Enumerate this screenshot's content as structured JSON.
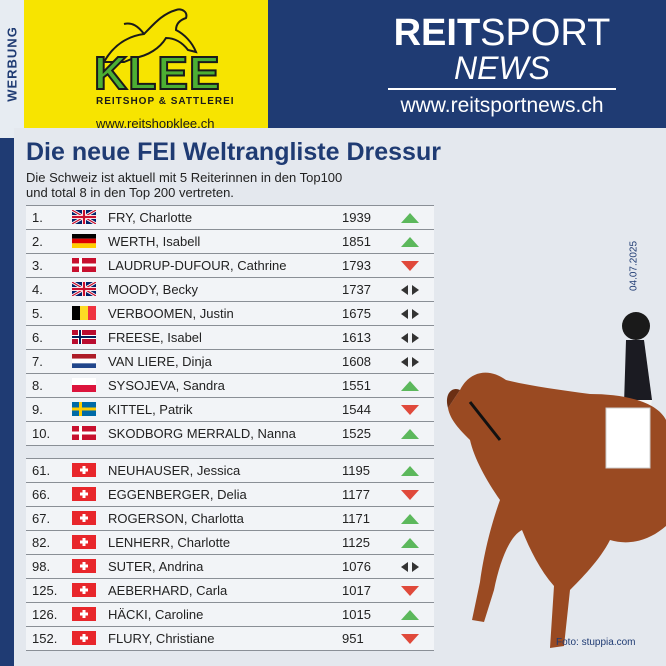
{
  "ad": {
    "side_label": "WERBUNG",
    "logo": "KLEE",
    "logo_sub": "REITSHOP & SATTLEREI",
    "url": "www.reitshopklee.ch"
  },
  "brand": {
    "title_bold": "REIT",
    "title_rest": "SPORT",
    "subtitle": "NEWS",
    "url": "www.reitsportnews.ch"
  },
  "heading": "Die neue FEI Weltrangliste Dressur",
  "subheading_line1": "Die Schweiz ist aktuell mit 5 Reiterinnen in den Top100",
  "subheading_line2": "und total 8 in den Top 200 vertreten.",
  "date": "04.07.2025",
  "photo_credit": "Foto: stuppia.com",
  "colors": {
    "navy": "#1f3b73",
    "up": "#5cb85c",
    "down": "#e0493b",
    "same": "#333333",
    "ad_yellow": "#f7e400"
  },
  "top10": [
    {
      "rank": "1.",
      "flag": "gb",
      "name": "FRY, Charlotte",
      "points": "1939",
      "trend": "up"
    },
    {
      "rank": "2.",
      "flag": "de",
      "name": "WERTH, Isabell",
      "points": "1851",
      "trend": "up"
    },
    {
      "rank": "3.",
      "flag": "dk",
      "name": "LAUDRUP-DUFOUR, Cathrine",
      "points": "1793",
      "trend": "down"
    },
    {
      "rank": "4.",
      "flag": "gb",
      "name": "MOODY, Becky",
      "points": "1737",
      "trend": "same"
    },
    {
      "rank": "5.",
      "flag": "be",
      "name": "VERBOOMEN, Justin",
      "points": "1675",
      "trend": "same"
    },
    {
      "rank": "6.",
      "flag": "no",
      "name": "FREESE, Isabel",
      "points": "1613",
      "trend": "same"
    },
    {
      "rank": "7.",
      "flag": "nl",
      "name": "VAN LIERE, Dinja",
      "points": "1608",
      "trend": "same"
    },
    {
      "rank": "8.",
      "flag": "pl",
      "name": "SYSOJEVA, Sandra",
      "points": "1551",
      "trend": "up"
    },
    {
      "rank": "9.",
      "flag": "se",
      "name": "KITTEL, Patrik",
      "points": "1544",
      "trend": "down"
    },
    {
      "rank": "10.",
      "flag": "dk",
      "name": "SKODBORG MERRALD, Nanna",
      "points": "1525",
      "trend": "up"
    }
  ],
  "swiss": [
    {
      "rank": "61.",
      "flag": "ch",
      "name": "NEUHAUSER, Jessica",
      "points": "1195",
      "trend": "up"
    },
    {
      "rank": "66.",
      "flag": "ch",
      "name": "EGGENBERGER, Delia",
      "points": "1177",
      "trend": "down"
    },
    {
      "rank": "67.",
      "flag": "ch",
      "name": "ROGERSON, Charlotta",
      "points": "1171",
      "trend": "up"
    },
    {
      "rank": "82.",
      "flag": "ch",
      "name": "LENHERR, Charlotte",
      "points": "1125",
      "trend": "up"
    },
    {
      "rank": "98.",
      "flag": "ch",
      "name": "SUTER, Andrina",
      "points": "1076",
      "trend": "same"
    },
    {
      "rank": "125.",
      "flag": "ch",
      "name": "AEBERHARD, Carla",
      "points": "1017",
      "trend": "down"
    },
    {
      "rank": "126.",
      "flag": "ch",
      "name": "HÄCKI, Caroline",
      "points": "1015",
      "trend": "up"
    },
    {
      "rank": "152.",
      "flag": "ch",
      "name": "FLURY, Christiane",
      "points": "951",
      "trend": "down"
    }
  ]
}
